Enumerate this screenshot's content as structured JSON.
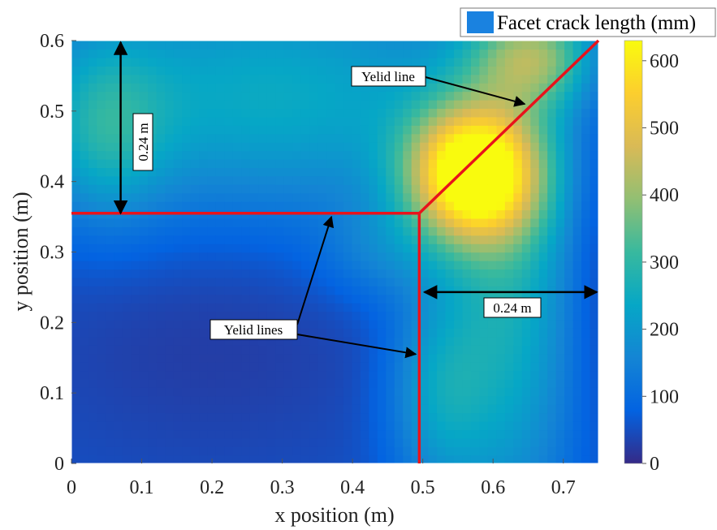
{
  "chart_data": {
    "type": "heatmap",
    "xlabel": "x position (m)",
    "ylabel": "y position (m)",
    "xlim": [
      0,
      0.75
    ],
    "ylim": [
      0,
      0.6
    ],
    "xticks": [
      "0",
      "0.1",
      "0.2",
      "0.3",
      "0.4",
      "0.5",
      "0.6",
      "0.7"
    ],
    "yticks": [
      "0",
      "0.1",
      "0.2",
      "0.3",
      "0.4",
      "0.5",
      "0.6"
    ],
    "colorbar": {
      "range": [
        0,
        630
      ],
      "ticks": [
        "0",
        "100",
        "200",
        "300",
        "400",
        "500",
        "600"
      ],
      "colormap": "parula"
    },
    "legend": {
      "label": "Facet crack length (mm)",
      "swatch_color": "#1a82e0",
      "position": "top-right"
    },
    "hotspot": {
      "x": 0.57,
      "y": 0.41,
      "value": 620
    },
    "yield_lines": [
      {
        "points": [
          [
            0,
            0.355
          ],
          [
            0.495,
            0.355
          ]
        ]
      },
      {
        "points": [
          [
            0.495,
            0
          ],
          [
            0.495,
            0.355
          ]
        ]
      },
      {
        "points": [
          [
            0.495,
            0.355
          ],
          [
            0.75,
            0.6
          ]
        ]
      }
    ],
    "annotations": [
      {
        "text": "Yelid line",
        "arrow_to": [
          0.645,
          0.51
        ]
      },
      {
        "text": "Yelid lines",
        "arrow_to": [
          [
            0.37,
            0.35
          ],
          [
            0.49,
            0.155
          ]
        ]
      },
      {
        "text": "0.24 m",
        "orientation": "vertical",
        "span": [
          [
            0.07,
            0.6
          ],
          [
            0.07,
            0.355
          ]
        ]
      },
      {
        "text": "0.24 m",
        "orientation": "horizontal",
        "span": [
          [
            0.5,
            0.25
          ],
          [
            0.75,
            0.25
          ]
        ]
      }
    ],
    "line_color": "#e8131b"
  }
}
